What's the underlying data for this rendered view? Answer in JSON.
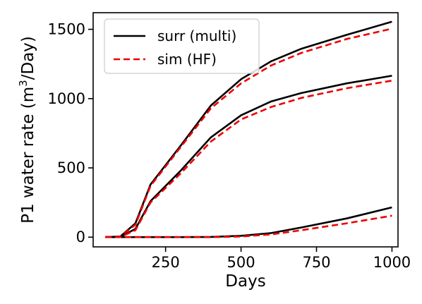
{
  "chart_data": {
    "type": "line",
    "xlabel": "Days",
    "ylabel_prefix": "P1 water rate (m",
    "ylabel_sup": "3",
    "ylabel_suffix": "/Day)",
    "xlim": [
      10,
      1020
    ],
    "ylim": [
      -70,
      1620
    ],
    "xticks": [
      250,
      500,
      750,
      1000
    ],
    "yticks": [
      0,
      500,
      1000,
      1500
    ],
    "grid": false,
    "legend_position": "top-left",
    "legend": [
      {
        "label": "surr (multi)",
        "color": "#000000",
        "dash": "solid"
      },
      {
        "label": "sim (HF)",
        "color": "#ee0000",
        "dash": "dashed"
      }
    ],
    "series": [
      {
        "group": "surr (multi)",
        "color": "#000000",
        "dash": "solid",
        "x": [
          50,
          100,
          150,
          200,
          300,
          400,
          500,
          600,
          700,
          850,
          1000
        ],
        "y": [
          0,
          5,
          100,
          380,
          660,
          950,
          1140,
          1270,
          1360,
          1460,
          1555
        ]
      },
      {
        "group": "sim (HF)",
        "color": "#ee0000",
        "dash": "dashed",
        "x": [
          50,
          100,
          150,
          200,
          300,
          400,
          500,
          600,
          700,
          850,
          1000
        ],
        "y": [
          0,
          5,
          90,
          370,
          650,
          930,
          1110,
          1240,
          1330,
          1430,
          1505
        ]
      },
      {
        "group": "surr (multi)",
        "color": "#000000",
        "dash": "solid",
        "x": [
          50,
          100,
          150,
          200,
          300,
          400,
          500,
          600,
          700,
          850,
          1000
        ],
        "y": [
          0,
          2,
          60,
          260,
          480,
          720,
          880,
          980,
          1040,
          1110,
          1165
        ]
      },
      {
        "group": "sim (HF)",
        "color": "#ee0000",
        "dash": "dashed",
        "x": [
          50,
          100,
          150,
          200,
          300,
          400,
          500,
          600,
          700,
          850,
          1000
        ],
        "y": [
          0,
          2,
          50,
          250,
          460,
          690,
          850,
          940,
          1005,
          1075,
          1130
        ]
      },
      {
        "group": "surr (multi)",
        "color": "#000000",
        "dash": "solid",
        "x": [
          50,
          100,
          200,
          300,
          400,
          500,
          600,
          700,
          850,
          1000
        ],
        "y": [
          0,
          0,
          0,
          0,
          2,
          10,
          30,
          70,
          135,
          215
        ]
      },
      {
        "group": "sim (HF)",
        "color": "#ee0000",
        "dash": "dashed",
        "x": [
          50,
          100,
          200,
          300,
          400,
          500,
          600,
          700,
          850,
          1000
        ],
        "y": [
          0,
          0,
          0,
          0,
          0,
          5,
          20,
          50,
          100,
          155
        ]
      }
    ]
  }
}
